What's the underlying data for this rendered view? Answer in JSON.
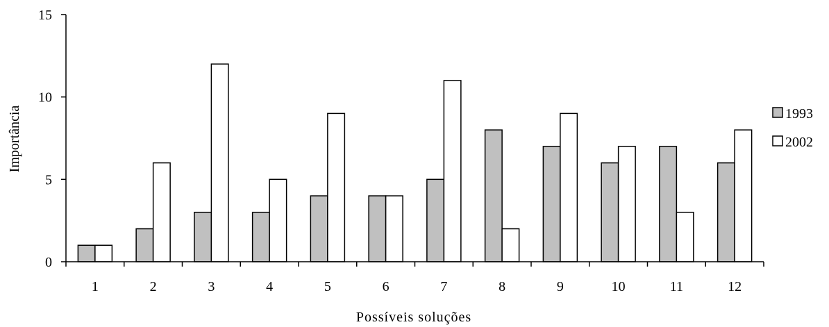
{
  "chart_data": {
    "type": "bar",
    "title": "",
    "xlabel": "Possíveis soluções",
    "ylabel": "Importância",
    "ylim": [
      0,
      15
    ],
    "yticks": [
      "0",
      "5",
      "10",
      "15"
    ],
    "categories": [
      "1",
      "2",
      "3",
      "4",
      "5",
      "6",
      "7",
      "8",
      "9",
      "10",
      "11",
      "12"
    ],
    "series": [
      {
        "name": "1993",
        "color": "#c0c0c0",
        "values": [
          1,
          2,
          3,
          3,
          4,
          4,
          5,
          8,
          7,
          6,
          7,
          6
        ]
      },
      {
        "name": "2002",
        "color": "#ffffff",
        "values": [
          1,
          6,
          12,
          5,
          9,
          4,
          11,
          2,
          9,
          7,
          3,
          8
        ]
      }
    ],
    "grid": false,
    "legend_position": "right"
  }
}
